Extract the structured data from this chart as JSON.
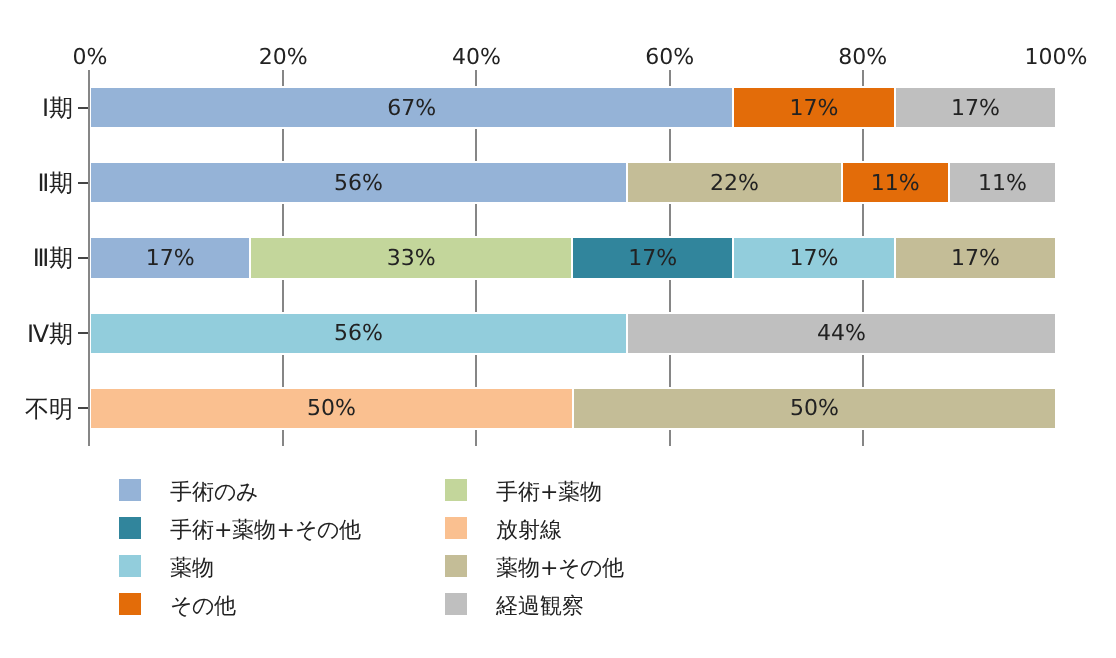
{
  "chart_data": {
    "type": "bar",
    "orientation": "horizontal",
    "stacked": true,
    "categories": [
      "Ⅰ期",
      "Ⅱ期",
      "Ⅲ期",
      "Ⅳ期",
      "不明"
    ],
    "series": [
      {
        "name": "手術のみ",
        "color": "#95b3d7",
        "values": [
          66.6,
          55.6,
          16.6,
          null,
          null
        ],
        "value_labels": [
          "67%",
          "56%",
          "17%",
          null,
          null
        ]
      },
      {
        "name": "手術+薬物",
        "color": "#c3d69b",
        "values": [
          null,
          null,
          33.3,
          null,
          null
        ],
        "value_labels": [
          null,
          null,
          "33%",
          null,
          null
        ]
      },
      {
        "name": "手術+薬物+その他",
        "color": "#31859c",
        "values": [
          null,
          null,
          16.7,
          null,
          null
        ],
        "value_labels": [
          null,
          null,
          "17%",
          null,
          null
        ]
      },
      {
        "name": "放射線",
        "color": "#fac090",
        "values": [
          null,
          null,
          null,
          null,
          50
        ],
        "value_labels": [
          null,
          null,
          null,
          null,
          "50%"
        ]
      },
      {
        "name": "薬物",
        "color": "#92cddc",
        "values": [
          null,
          null,
          16.7,
          55.6,
          null
        ],
        "value_labels": [
          null,
          null,
          "17%",
          "56%",
          null
        ]
      },
      {
        "name": "薬物+その他",
        "color": "#c4bd97",
        "values": [
          null,
          22.2,
          16.7,
          null,
          50
        ],
        "value_labels": [
          null,
          "22%",
          "17%",
          null,
          "50%"
        ]
      },
      {
        "name": "その他",
        "color": "#e36c09",
        "values": [
          16.7,
          11.1,
          null,
          null,
          null
        ],
        "value_labels": [
          "17%",
          "11%",
          null,
          null,
          null
        ]
      },
      {
        "name": "経過観察",
        "color": "#bfbfbf",
        "values": [
          16.7,
          11.1,
          null,
          44.4,
          null
        ],
        "value_labels": [
          "17%",
          "11%",
          null,
          "44%",
          null
        ]
      }
    ],
    "xlim": [
      0,
      100
    ],
    "xticks": [
      {
        "value": 0,
        "label": "0%"
      },
      {
        "value": 20,
        "label": "20%"
      },
      {
        "value": 40,
        "label": "40%"
      },
      {
        "value": 60,
        "label": "60%"
      },
      {
        "value": 80,
        "label": "80%"
      },
      {
        "value": 100,
        "label": "100%"
      }
    ],
    "grid": "x",
    "legend": "bottom"
  }
}
